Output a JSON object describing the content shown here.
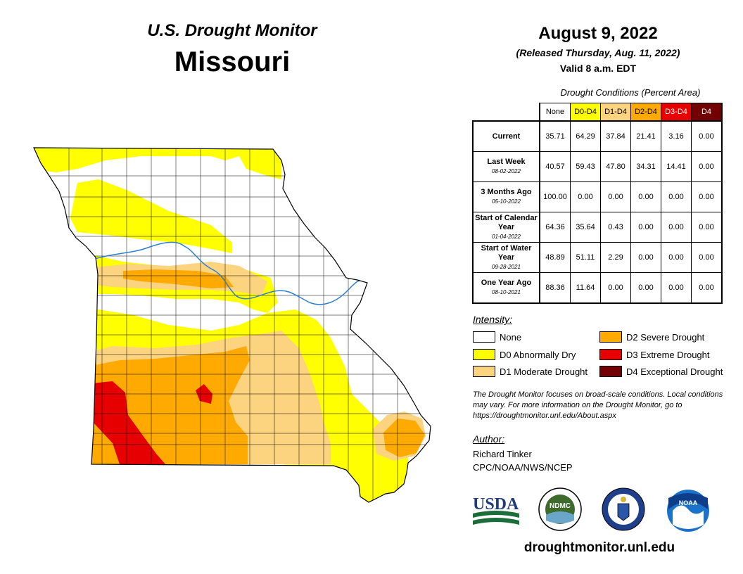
{
  "header": {
    "brand": "U.S. Drought Monitor",
    "state": "Missouri",
    "date": "August 9, 2022",
    "released": "(Released Thursday, Aug. 11, 2022)",
    "valid": "Valid 8 a.m. EDT"
  },
  "table": {
    "caption": "Drought Conditions (Percent Area)",
    "columns": [
      {
        "label": "None",
        "bg": "#ffffff",
        "fg": "#000000"
      },
      {
        "label": "D0-D4",
        "bg": "#ffff00",
        "fg": "#000000"
      },
      {
        "label": "D1-D4",
        "bg": "#fcd37f",
        "fg": "#000000"
      },
      {
        "label": "D2-D4",
        "bg": "#ffaa00",
        "fg": "#000000"
      },
      {
        "label": "D3-D4",
        "bg": "#e60000",
        "fg": "#ffffff"
      },
      {
        "label": "D4",
        "bg": "#730000",
        "fg": "#ffffff"
      }
    ],
    "rows": [
      {
        "label": "Current",
        "date": "",
        "values": [
          "35.71",
          "64.29",
          "37.84",
          "21.41",
          "3.16",
          "0.00"
        ]
      },
      {
        "label": "Last Week",
        "date": "08-02-2022",
        "values": [
          "40.57",
          "59.43",
          "47.80",
          "34.31",
          "14.41",
          "0.00"
        ]
      },
      {
        "label": "3 Months Ago",
        "date": "05-10-2022",
        "values": [
          "100.00",
          "0.00",
          "0.00",
          "0.00",
          "0.00",
          "0.00"
        ]
      },
      {
        "label": "Start of Calendar Year",
        "date": "01-04-2022",
        "values": [
          "64.36",
          "35.64",
          "0.43",
          "0.00",
          "0.00",
          "0.00"
        ]
      },
      {
        "label": "Start of Water Year",
        "date": "09-28-2021",
        "values": [
          "48.89",
          "51.11",
          "2.29",
          "0.00",
          "0.00",
          "0.00"
        ]
      },
      {
        "label": "One Year Ago",
        "date": "08-10-2021",
        "values": [
          "88.36",
          "11.64",
          "0.00",
          "0.00",
          "0.00",
          "0.00"
        ]
      }
    ]
  },
  "legend": {
    "title": "Intensity:",
    "items": [
      {
        "label": "None",
        "color": "#ffffff"
      },
      {
        "label": "D0 Abnormally Dry",
        "color": "#ffff00"
      },
      {
        "label": "D1 Moderate Drought",
        "color": "#fcd37f"
      },
      {
        "label": "D2 Severe Drought",
        "color": "#ffaa00"
      },
      {
        "label": "D3 Extreme Drought",
        "color": "#e60000"
      },
      {
        "label": "D4 Exceptional Drought",
        "color": "#730000"
      }
    ]
  },
  "disclaimer": "The Drought Monitor focuses on broad-scale conditions. Local conditions may vary. For more information on the Drought Monitor, go to https://droughtmonitor.unl.edu/About.aspx",
  "author": {
    "label": "Author:",
    "name": "Richard Tinker",
    "org": "CPC/NOAA/NWS/NCEP"
  },
  "logos": {
    "usda": "USDA",
    "ndmc": "NDMC",
    "noaa": "NOAA"
  },
  "website": "droughtmonitor.unl.edu"
}
